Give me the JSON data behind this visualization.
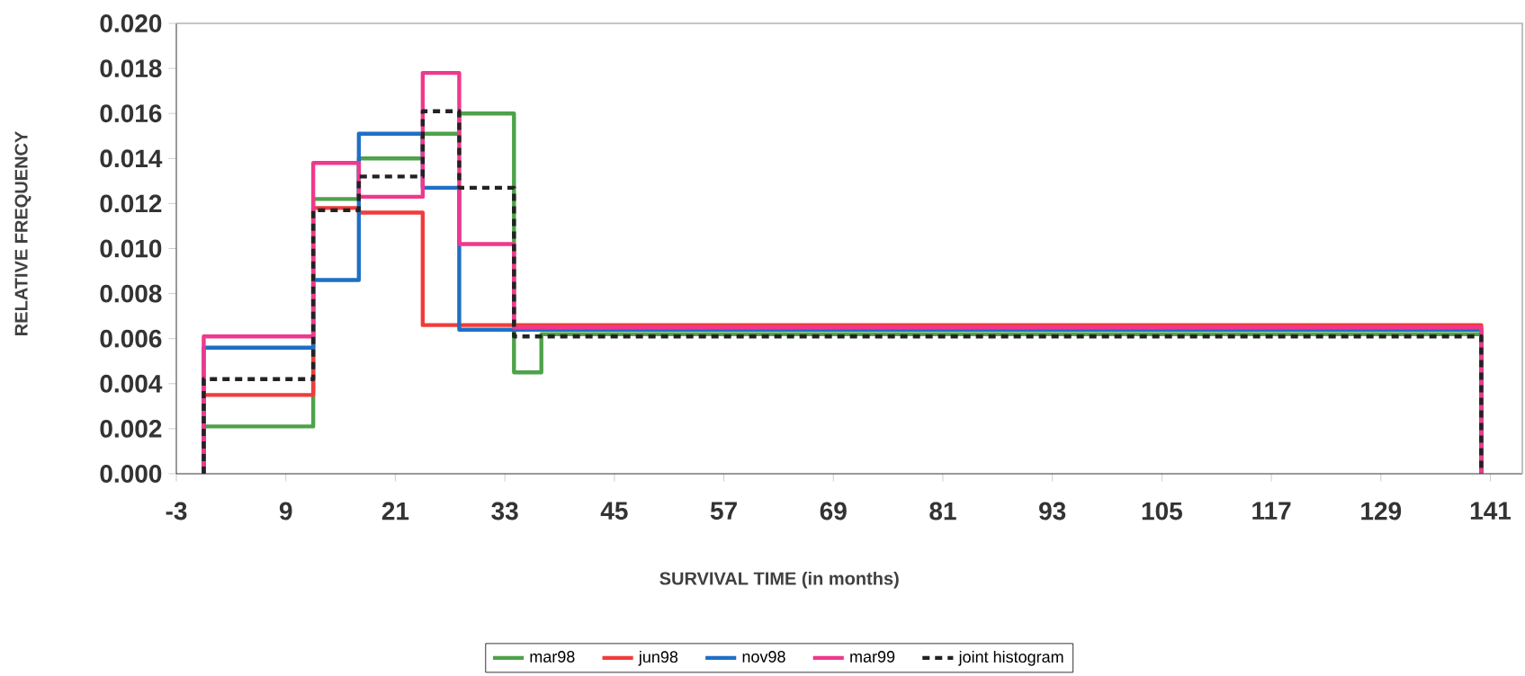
{
  "chart_data": {
    "type": "histogram",
    "xlabel": "SURVIVAL TIME (in months)",
    "ylabel": "RELATIVE FREQUENCY",
    "xlim": [
      -3,
      144.5
    ],
    "ylim": [
      0,
      0.02
    ],
    "xticks": [
      -3,
      9,
      21,
      33,
      45,
      57,
      69,
      81,
      93,
      105,
      117,
      129,
      141
    ],
    "yticks": [
      {
        "value": 0,
        "label": "0.000"
      },
      {
        "value": 0.002,
        "label": "0.002"
      },
      {
        "value": 0.004,
        "label": "0.004"
      },
      {
        "value": 0.006,
        "label": "0.006"
      },
      {
        "value": 0.008,
        "label": "0.008"
      },
      {
        "value": 0.01,
        "label": "0.010"
      },
      {
        "value": 0.012,
        "label": "0.012"
      },
      {
        "value": 0.014,
        "label": "0.014"
      },
      {
        "value": 0.016,
        "label": "0.016"
      },
      {
        "value": 0.018,
        "label": "0.018"
      },
      {
        "value": 0.02,
        "label": "0.020"
      }
    ],
    "grid": false,
    "legend": "bottom",
    "bins": [
      0,
      12,
      17,
      24,
      28,
      34,
      37,
      140
    ],
    "series": [
      {
        "name": "mar98",
        "color": "#4ea24a",
        "line_style": "solid",
        "values": [
          0.0021,
          0.0122,
          0.014,
          0.0151,
          0.016,
          0.0045,
          0.0062
        ]
      },
      {
        "name": "jun98",
        "color": "#f03c3c",
        "line_style": "solid",
        "values": [
          0.0035,
          0.0118,
          0.0116,
          0.0066,
          0.0066,
          0.0066,
          0.0066
        ]
      },
      {
        "name": "nov98",
        "color": "#1f6fc5",
        "line_style": "solid",
        "values": [
          0.0056,
          0.0086,
          0.0151,
          0.0127,
          0.0064,
          0.0064,
          0.0064
        ]
      },
      {
        "name": "mar99",
        "color": "#f0388c",
        "line_style": "solid",
        "values": [
          0.0061,
          0.0138,
          0.0123,
          0.0178,
          0.0102,
          0.0065,
          0.0065
        ]
      },
      {
        "name": "joint histogram",
        "color": "#222222",
        "line_style": "dashed",
        "values": [
          0.0042,
          0.0117,
          0.0132,
          0.0161,
          0.0127,
          0.0061,
          0.0061
        ]
      }
    ]
  }
}
